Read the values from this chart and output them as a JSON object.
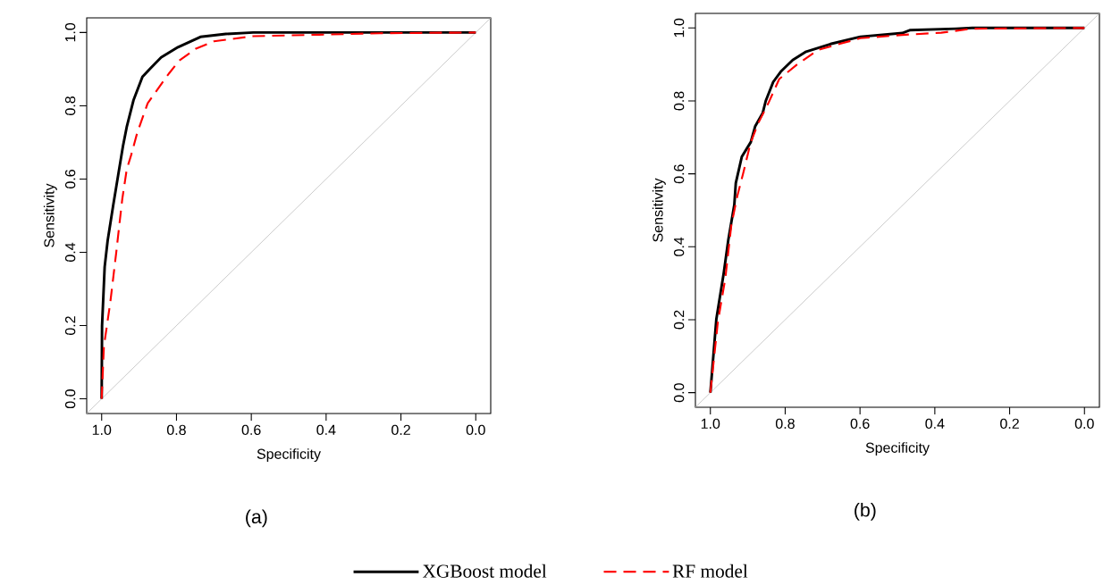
{
  "chart_data": [
    {
      "type": "line",
      "xlabel": "Specificity",
      "ylabel": "Sensitivity",
      "annotations": [
        "(a)"
      ],
      "xlim": [
        1.04,
        -0.04
      ],
      "ylim": [
        -0.04,
        1.04
      ],
      "xticks": [
        {
          "value": 1,
          "label": "1.0"
        },
        {
          "value": 0.8,
          "label": "0.8"
        },
        {
          "value": 0.6,
          "label": "0.6"
        },
        {
          "value": 0.4,
          "label": "0.4"
        },
        {
          "value": 0.2,
          "label": "0.2"
        },
        {
          "value": 0,
          "label": "0.0"
        }
      ],
      "yticks": [
        {
          "value": 0,
          "label": "0.0"
        },
        {
          "value": 0.2,
          "label": "0.2"
        },
        {
          "value": 0.4,
          "label": "0.4"
        },
        {
          "value": 0.6,
          "label": "0.6"
        },
        {
          "value": 0.8,
          "label": "0.8"
        },
        {
          "value": 1,
          "label": "1.0"
        }
      ],
      "grid": false,
      "legend": "bottom",
      "marker": "none",
      "series": [
        {
          "color": "#bebebe",
          "x": [
            1.04,
            -0.04
          ],
          "values": [
            -0.04,
            1.04
          ]
        },
        {
          "name": "XGBoost model",
          "color": "#000000",
          "line_style": "solid",
          "x": [
            1,
            0.999,
            0.992,
            0.984,
            0.969,
            0.956,
            0.943,
            0.933,
            0.915,
            0.891,
            0.869,
            0.841,
            0.796,
            0.736,
            0.668,
            0.595,
            0
          ],
          "values": [
            0,
            0.199,
            0.36,
            0.432,
            0.529,
            0.61,
            0.69,
            0.742,
            0.815,
            0.879,
            0.903,
            0.932,
            0.96,
            0.988,
            0.996,
            1,
            1
          ]
        },
        {
          "name": "RF model",
          "color": "#ff0000",
          "line_style": "dashed",
          "x": [
            1,
            0.994,
            0.977,
            0.961,
            0.945,
            0.933,
            0.921,
            0.905,
            0.877,
            0.849,
            0.821,
            0.792,
            0.748,
            0.7,
            0.595,
            0.418,
            0.257,
            0
          ],
          "values": [
            0,
            0.143,
            0.263,
            0.4,
            0.545,
            0.626,
            0.666,
            0.726,
            0.807,
            0.847,
            0.887,
            0.924,
            0.956,
            0.976,
            0.99,
            0.994,
            0.998,
            1
          ]
        }
      ]
    },
    {
      "type": "line",
      "xlabel": "Specificity",
      "ylabel": "Sensitivity",
      "annotations": [
        "(b)"
      ],
      "xlim": [
        1.04,
        -0.04
      ],
      "ylim": [
        -0.04,
        1.04
      ],
      "xticks": [
        {
          "value": 1,
          "label": "1.0"
        },
        {
          "value": 0.8,
          "label": "0.8"
        },
        {
          "value": 0.6,
          "label": "0.6"
        },
        {
          "value": 0.4,
          "label": "0.4"
        },
        {
          "value": 0.2,
          "label": "0.2"
        },
        {
          "value": 0,
          "label": "0.0"
        }
      ],
      "yticks": [
        {
          "value": 0,
          "label": "0.0"
        },
        {
          "value": 0.2,
          "label": "0.2"
        },
        {
          "value": 0.4,
          "label": "0.4"
        },
        {
          "value": 0.6,
          "label": "0.6"
        },
        {
          "value": 0.8,
          "label": "0.8"
        },
        {
          "value": 1,
          "label": "1.0"
        }
      ],
      "grid": false,
      "marker": "none",
      "series": [
        {
          "color": "#bebebe",
          "x": [
            1.04,
            -0.04
          ],
          "values": [
            -0.04,
            1.04
          ]
        },
        {
          "color": "#000000",
          "line_style": "solid",
          "x": [
            1,
            0.984,
            0.964,
            0.952,
            0.936,
            0.932,
            0.916,
            0.892,
            0.88,
            0.86,
            0.852,
            0.832,
            0.812,
            0.78,
            0.744,
            0.679,
            0.599,
            0.487,
            0.467,
            0.343,
            0.3,
            0
          ],
          "values": [
            0,
            0.202,
            0.33,
            0.419,
            0.515,
            0.575,
            0.647,
            0.687,
            0.731,
            0.767,
            0.8,
            0.852,
            0.88,
            0.912,
            0.935,
            0.956,
            0.976,
            0.986,
            0.994,
            0.998,
            1,
            1
          ]
        },
        {
          "color": "#ff0000",
          "line_style": "dashed",
          "x": [
            1,
            0.98,
            0.96,
            0.944,
            0.928,
            0.912,
            0.892,
            0.872,
            0.844,
            0.816,
            0.768,
            0.712,
            0.599,
            0.487,
            0.383,
            0.3,
            0
          ],
          "values": [
            0,
            0.194,
            0.314,
            0.459,
            0.539,
            0.603,
            0.687,
            0.739,
            0.796,
            0.86,
            0.9,
            0.94,
            0.972,
            0.981,
            0.987,
            0.998,
            1
          ]
        }
      ]
    }
  ]
}
